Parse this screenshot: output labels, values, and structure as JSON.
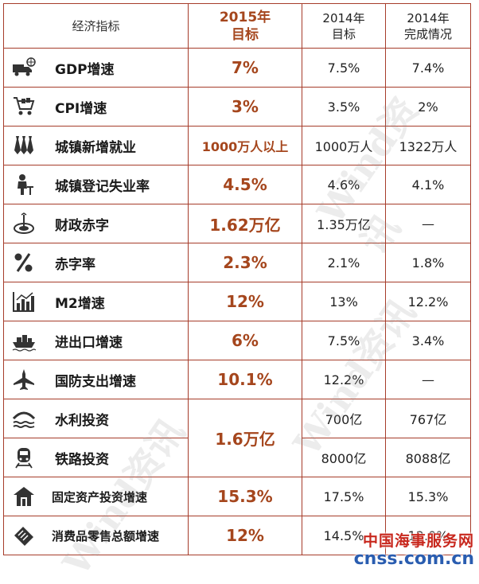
{
  "header": {
    "indicator": "经济指标",
    "target_2015": [
      "2015年",
      "目标"
    ],
    "target_2014": [
      "2014年",
      "目标"
    ],
    "actual_2014": [
      "2014年",
      "完成情况"
    ]
  },
  "rows": [
    {
      "icon": "truck-globe-icon",
      "label": "GDP增速",
      "target_2015": "7%",
      "target_2014": "7.5%",
      "actual_2014": "7.4%"
    },
    {
      "icon": "shopping-cart-icon",
      "label": "CPI增速",
      "target_2015": "3%",
      "target_2014": "3.5%",
      "actual_2014": "2%"
    },
    {
      "icon": "neckties-icon",
      "label": "城镇新增就业",
      "target_2015": "1000万人以上",
      "target_2014": "1000万人",
      "actual_2014": "1322万人"
    },
    {
      "icon": "seated-person-icon",
      "label": "城镇登记失业率",
      "target_2015": "4.5%",
      "target_2014": "4.6%",
      "actual_2014": "4.1%"
    },
    {
      "icon": "target-icon",
      "label": "财政赤字",
      "target_2015": "1.62万亿",
      "target_2014": "1.35万亿",
      "actual_2014": "—"
    },
    {
      "icon": "percent-icon",
      "label": "赤字率",
      "target_2015": "2.3%",
      "target_2014": "2.1%",
      "actual_2014": "1.8%"
    },
    {
      "icon": "bar-chart-icon",
      "label": "M2增速",
      "target_2015": "12%",
      "target_2014": "13%",
      "actual_2014": "12.2%"
    },
    {
      "icon": "ship-icon",
      "label": "进出口增速",
      "target_2015": "6%",
      "target_2014": "7.5%",
      "actual_2014": "3.4%"
    },
    {
      "icon": "fighter-jet-icon",
      "label": "国防支出增速",
      "target_2015": "10.1%",
      "target_2014": "12.2%",
      "actual_2014": "—"
    },
    {
      "icon": "water-bridge-icon",
      "label": "水利投资",
      "target_2015": "1.6万亿",
      "target_2014": "700亿",
      "actual_2014": "767亿"
    },
    {
      "icon": "train-icon",
      "label": "铁路投资",
      "target_2015": "",
      "target_2014": "8000亿",
      "actual_2014": "8088亿"
    },
    {
      "icon": "house-icon",
      "label": "固定资产投资增速",
      "target_2015": "15.3%",
      "target_2014": "17.5%",
      "actual_2014": "15.3%"
    },
    {
      "icon": "card-icon",
      "label": "消费品零售总额增速",
      "target_2015": "12%",
      "target_2014": "14.5%",
      "actual_2014": "12.0%"
    }
  ],
  "watermarks": [
    "Wind资讯",
    "Wind资讯",
    "Wind资讯"
  ],
  "brand": {
    "name_cn": "中国海事服务网",
    "name_en": "cnss.com.cn"
  },
  "colors": {
    "accent": "#a5461d",
    "border": "#a63c2a",
    "brand_red": "#c8281e",
    "brand_blue": "#2a5db0"
  }
}
